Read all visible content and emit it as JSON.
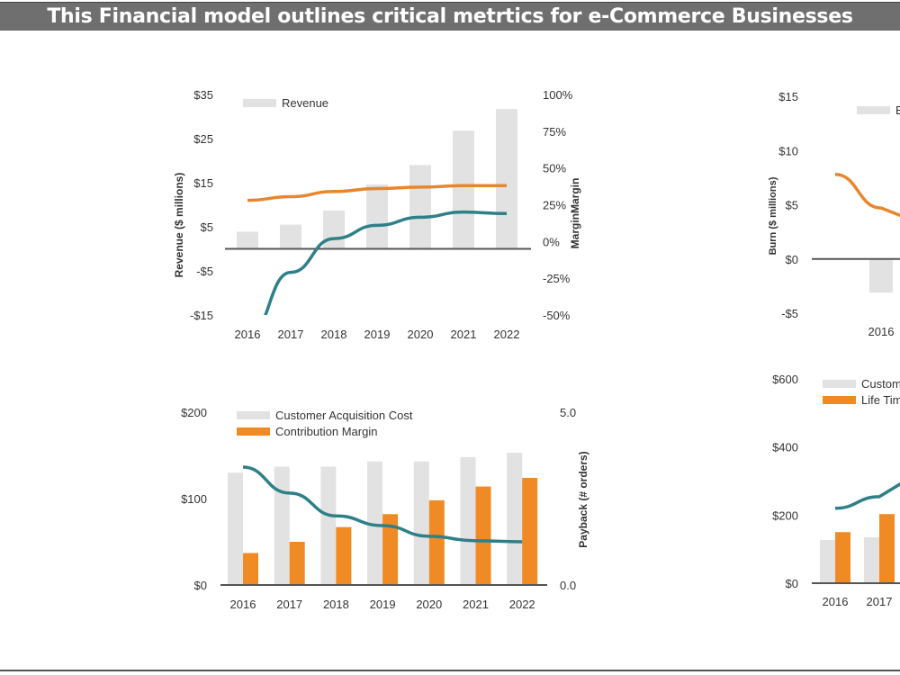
{
  "title": "This Financial model outlines critical metrtics for e-Commerce Businesses",
  "colors": {
    "bar_gray": "#e2e2e2",
    "orange": "#f08a24",
    "orange_line": "#e8862e",
    "teal": "#2e8088",
    "axis": "#555555",
    "title_bg": "#6f6f6f"
  },
  "chart_data": [
    {
      "type": "bar+line",
      "categories": [
        "2016",
        "2017",
        "2018",
        "2019",
        "2020",
        "2021",
        "2022"
      ],
      "y_left": {
        "label": "Revenue ($ millions)",
        "range": [
          -15,
          35
        ],
        "ticks": [
          "$35",
          "$25",
          "$15",
          "$5",
          "-$5",
          "-$15"
        ],
        "tick_values": [
          35,
          25,
          15,
          5,
          -5,
          -15
        ]
      },
      "y_right": {
        "label": "MarginMargin",
        "range": [
          -50,
          100
        ],
        "ticks": [
          "100%",
          "75%",
          "50%",
          "25%",
          "0%",
          "-25%",
          "-50%"
        ],
        "tick_values": [
          100,
          75,
          50,
          25,
          0,
          -25,
          -50
        ]
      },
      "legend": [
        "Revenue"
      ],
      "legend_position": "top-left",
      "bars": [
        {
          "name": "Revenue",
          "axis": "left",
          "values": [
            3.9,
            5.5,
            8.7,
            14.6,
            19.0,
            26.8,
            31.7
          ]
        }
      ],
      "lines": [
        {
          "axis": "right",
          "color": "orange",
          "values": [
            28,
            30.5,
            34,
            36,
            37,
            38,
            38
          ]
        },
        {
          "axis": "right",
          "color": "teal",
          "values": [
            -65,
            -21,
            2,
            11,
            16.5,
            20,
            19
          ]
        }
      ],
      "grid": false
    },
    {
      "type": "bar+line",
      "categories": [
        "2016",
        "2017",
        "2018",
        "2019",
        "2020",
        "2021",
        "2022"
      ],
      "y_left": {
        "label": "",
        "range": [
          0,
          200
        ],
        "ticks": [
          "$200",
          "$100",
          "$0"
        ],
        "tick_values": [
          200,
          100,
          0
        ]
      },
      "y_right": {
        "label": "Payback (# orders)",
        "range": [
          0,
          5
        ],
        "ticks": [
          "5.0",
          "0.0"
        ],
        "tick_values": [
          5,
          0
        ]
      },
      "legend": [
        "Customer Acquisition Cost",
        "Contribution Margin"
      ],
      "legend_position": "top-left",
      "bars": [
        {
          "name": "Customer Acquisition Cost",
          "axis": "left",
          "color": "gray",
          "values": [
            130,
            137,
            137,
            143,
            143,
            148,
            153
          ]
        },
        {
          "name": "Contribution Margin",
          "axis": "left",
          "color": "orange",
          "values": [
            37,
            50,
            67,
            82,
            98,
            114,
            124
          ]
        }
      ],
      "lines": [
        {
          "axis": "right",
          "color": "teal",
          "values": [
            3.41,
            2.66,
            2.0,
            1.72,
            1.41,
            1.28,
            1.25
          ]
        }
      ],
      "grid": false
    },
    {
      "type": "bar+line",
      "categories": [
        "",
        "2016"
      ],
      "y_left": {
        "label": "Burn ($ millions)",
        "range": [
          -5,
          15
        ],
        "ticks": [
          "$15",
          "$10",
          "$5",
          "$0",
          "-$5"
        ],
        "tick_values": [
          15,
          10,
          5,
          0,
          -5
        ]
      },
      "legend": [
        "Burn"
      ],
      "legend_position": "top",
      "bars": [
        {
          "name": "Burn",
          "axis": "left",
          "color": "gray",
          "values": [
            null,
            -3.1
          ]
        }
      ],
      "lines": [
        {
          "axis": "left",
          "color": "orange",
          "values": [
            7.8,
            4.7
          ]
        }
      ],
      "grid": false
    },
    {
      "type": "bar+line",
      "categories": [
        "2016",
        "2017"
      ],
      "y_left": {
        "label": "",
        "range": [
          0,
          600
        ],
        "ticks": [
          "$600",
          "$400",
          "$200",
          "$0"
        ],
        "tick_values": [
          600,
          400,
          200,
          0
        ]
      },
      "legend": [
        "Customer Acquisition Cost",
        "Life Time Value"
      ],
      "legend_position": "top-left",
      "bars": [
        {
          "name": "Customer Acquisition Cost",
          "axis": "left",
          "color": "gray",
          "values": [
            127,
            135
          ]
        },
        {
          "name": "Life Time Value",
          "axis": "left",
          "color": "orange",
          "values": [
            150,
            203
          ]
        }
      ],
      "lines": [
        {
          "axis": "left",
          "color": "teal",
          "values": [
            220,
            254
          ]
        }
      ],
      "grid": false
    }
  ]
}
